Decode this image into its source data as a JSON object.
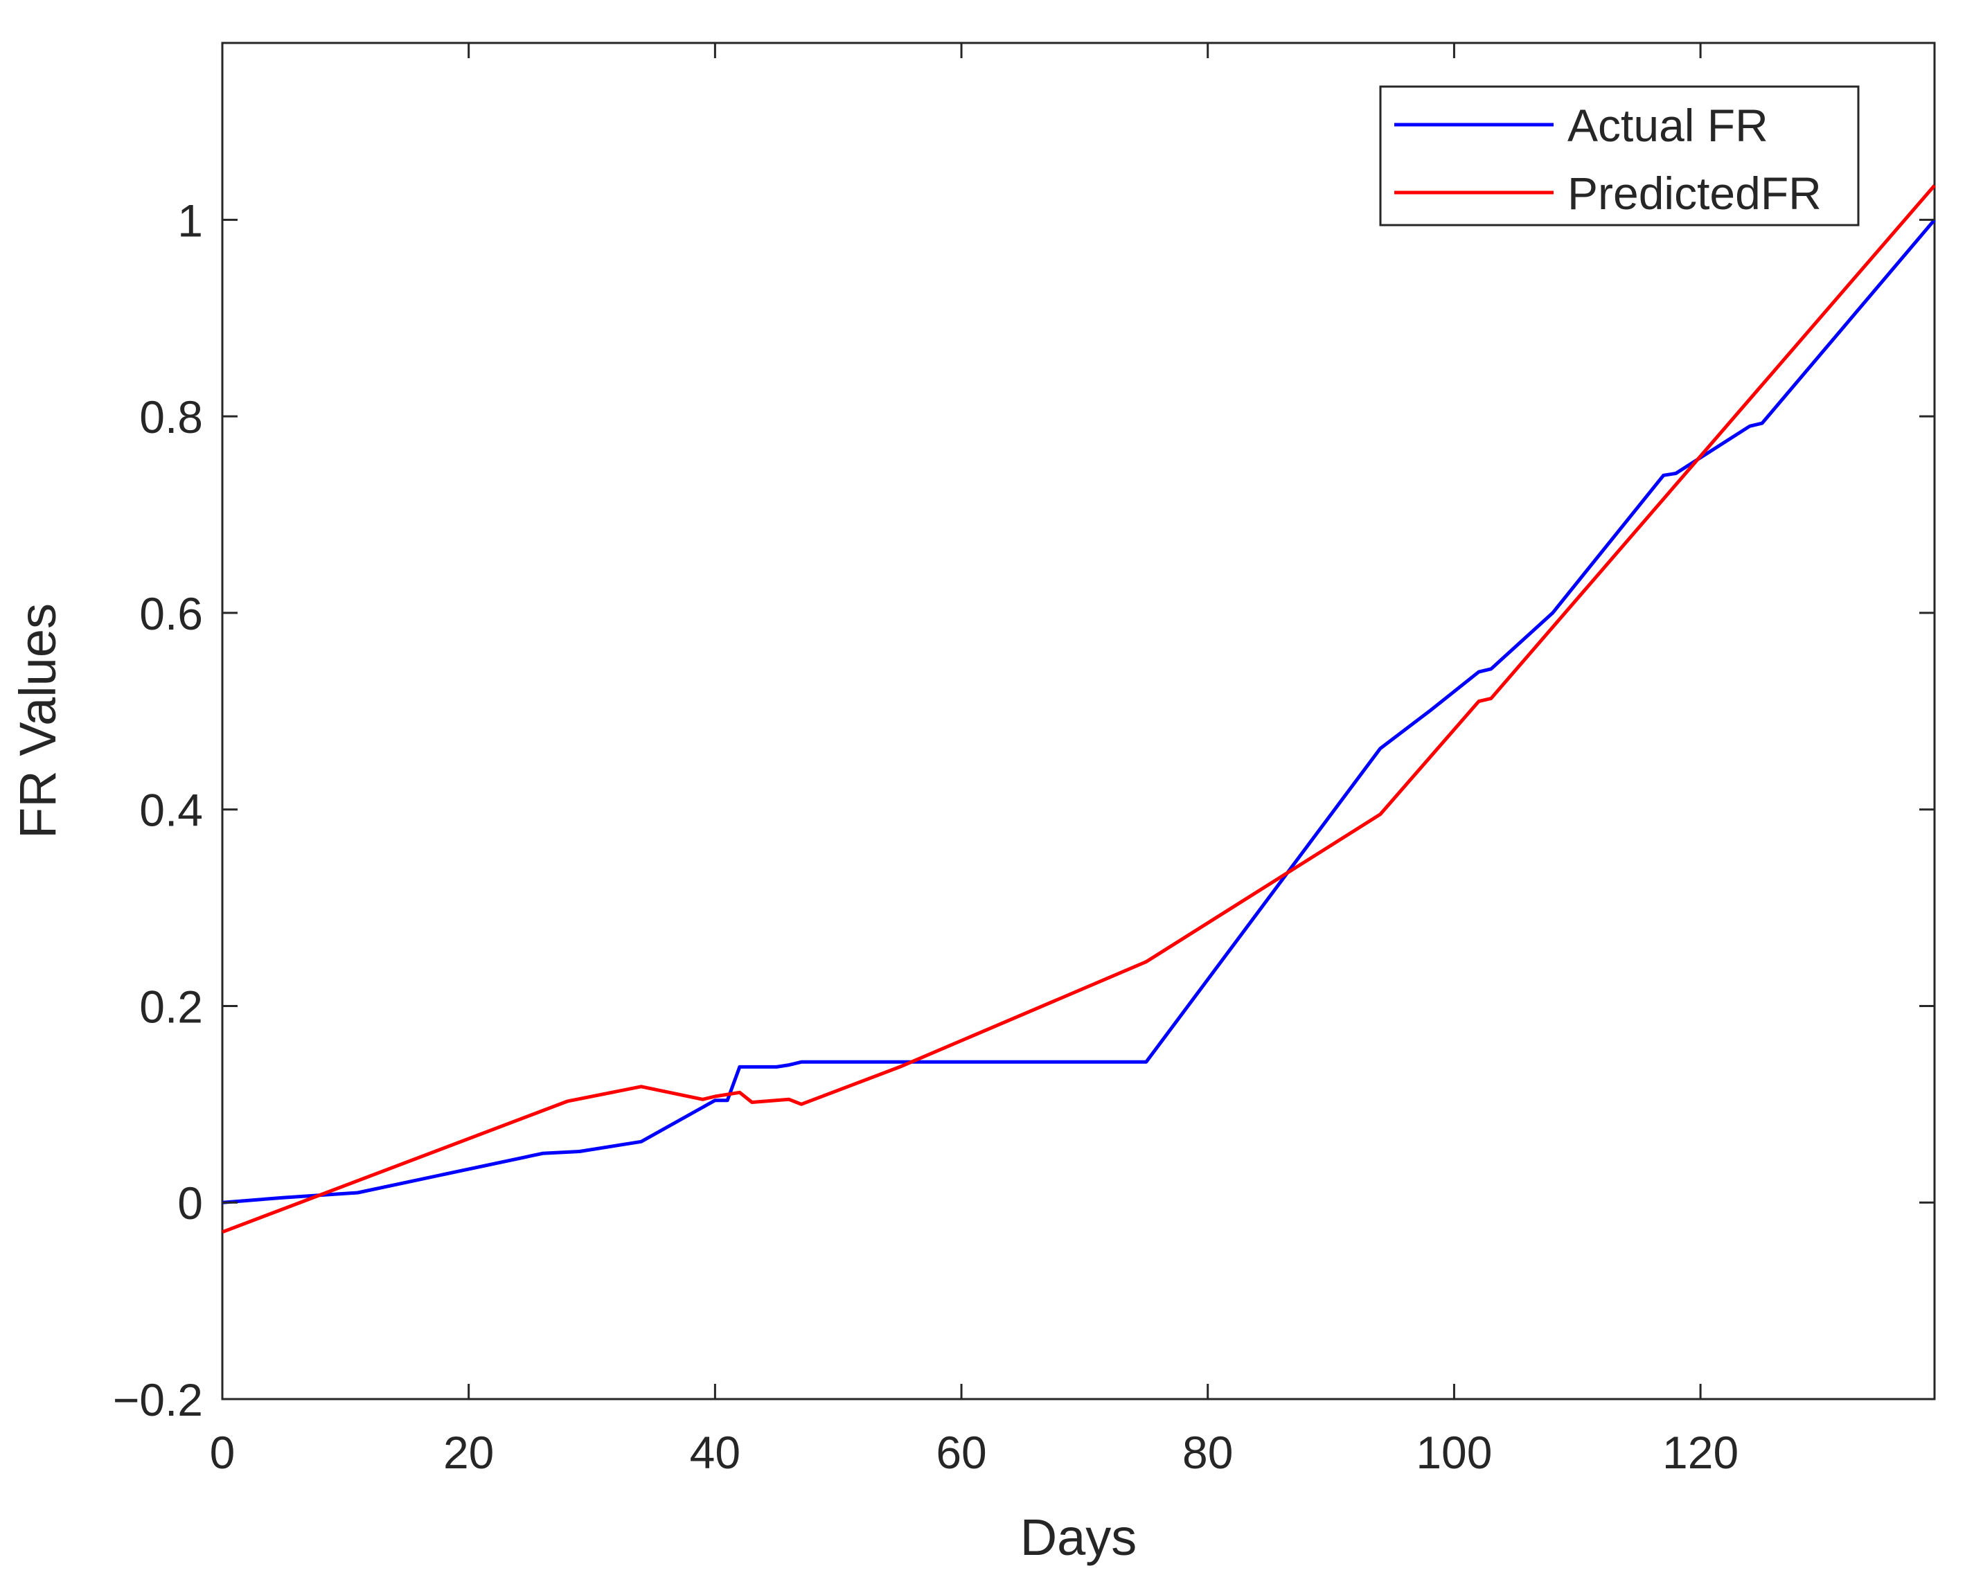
{
  "chart_data": {
    "type": "line",
    "xlabel": "Days",
    "ylabel": "FR Values",
    "xlim": [
      0,
      139
    ],
    "ylim": [
      -0.2,
      1.18
    ],
    "xticks": [
      "0",
      "20",
      "40",
      "60",
      "80",
      "100",
      "120"
    ],
    "yticks": [
      "−0.2",
      "0",
      "0.2",
      "0.4",
      "0.6",
      "0.8",
      "1"
    ],
    "grid": false,
    "legend_position": "top-right",
    "series": [
      {
        "name": "Actual FR",
        "color": "#0000ff",
        "x": [
          0,
          5,
          11,
          26,
          29,
          34,
          40,
          41,
          42,
          45,
          46,
          47,
          75,
          94,
          98,
          102,
          103,
          108,
          117,
          118,
          124,
          125,
          139
        ],
        "y": [
          0.0,
          0.005,
          0.01,
          0.05,
          0.052,
          0.062,
          0.104,
          0.104,
          0.138,
          0.138,
          0.14,
          0.143,
          0.143,
          0.462,
          0.5,
          0.54,
          0.543,
          0.6,
          0.74,
          0.742,
          0.79,
          0.793,
          1.0
        ]
      },
      {
        "name": "PredictedFR",
        "color": "#ff0000",
        "x": [
          0,
          28,
          34,
          39,
          40,
          42,
          43,
          46,
          47,
          55,
          75,
          94,
          102,
          103,
          139
        ],
        "y": [
          -0.03,
          0.103,
          0.118,
          0.105,
          0.108,
          0.112,
          0.102,
          0.105,
          0.1,
          0.138,
          0.245,
          0.395,
          0.51,
          0.513,
          1.035
        ]
      }
    ]
  }
}
